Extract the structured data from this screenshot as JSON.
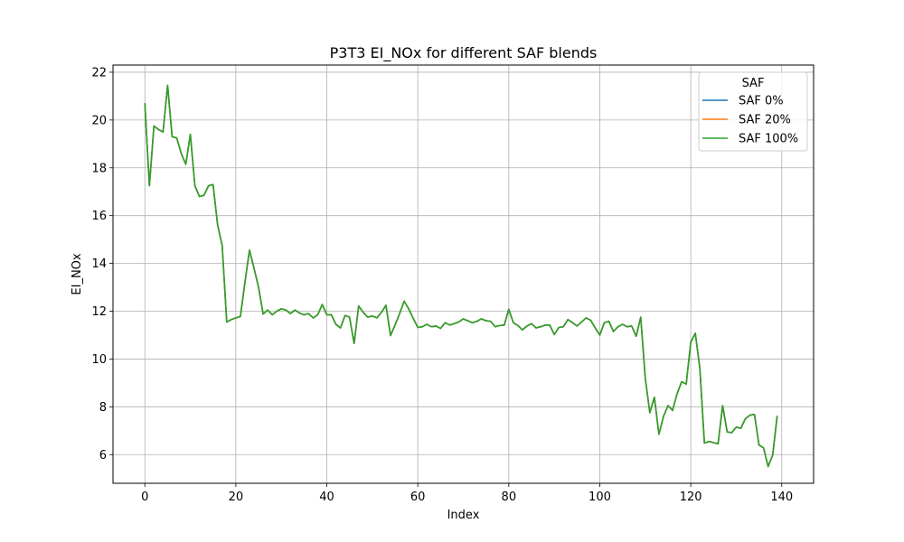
{
  "chart_data": {
    "type": "line",
    "title": "P3T3 EI_NOx for different SAF blends",
    "xlabel": "Index",
    "ylabel": "EI_NOx",
    "xlim": [
      -7,
      147
    ],
    "ylim": [
      4.8,
      22.3
    ],
    "xticks": [
      0,
      20,
      40,
      60,
      80,
      100,
      120,
      140
    ],
    "yticks": [
      6,
      8,
      10,
      12,
      14,
      16,
      18,
      20,
      22
    ],
    "grid": true,
    "legend": {
      "title": "SAF",
      "placement": "upper-right"
    },
    "series": [
      {
        "name": "SAF 0%",
        "color": "#1f77b4"
      },
      {
        "name": "SAF 20%",
        "color": "#ff7f0e"
      },
      {
        "name": "SAF 100%",
        "color": "#2ca02c"
      }
    ],
    "y": [
      20.7,
      17.25,
      19.75,
      19.6,
      19.5,
      21.45,
      19.3,
      19.25,
      18.6,
      18.15,
      19.4,
      17.25,
      16.8,
      16.85,
      17.25,
      17.3,
      15.6,
      14.75,
      11.55,
      11.65,
      11.72,
      11.78,
      13.2,
      14.55,
      13.8,
      13.0,
      11.88,
      12.05,
      11.85,
      12.0,
      12.1,
      12.05,
      11.9,
      12.05,
      11.92,
      11.85,
      11.9,
      11.72,
      11.85,
      12.28,
      11.85,
      11.85,
      11.45,
      11.3,
      11.82,
      11.75,
      10.65,
      12.22,
      11.95,
      11.75,
      11.8,
      11.72,
      11.95,
      12.25,
      10.98,
      11.42,
      11.9,
      12.42,
      12.1,
      11.7,
      11.32,
      11.35,
      11.45,
      11.35,
      11.38,
      11.28,
      11.52,
      11.42,
      11.48,
      11.55,
      11.68,
      11.6,
      11.52,
      11.58,
      11.68,
      11.6,
      11.58,
      11.35,
      11.4,
      11.42,
      12.08,
      11.52,
      11.4,
      11.22,
      11.38,
      11.48,
      11.3,
      11.35,
      11.42,
      11.42,
      11.02,
      11.32,
      11.35,
      11.65,
      11.52,
      11.38,
      11.55,
      11.72,
      11.62,
      11.3,
      11.0,
      11.52,
      11.58,
      11.15,
      11.35,
      11.45,
      11.35,
      11.38,
      10.95,
      11.75,
      9.2,
      7.75,
      8.4,
      6.85,
      7.6,
      8.05,
      7.85,
      8.55,
      9.05,
      8.95,
      10.7,
      11.08,
      9.6,
      6.48,
      6.55,
      6.5,
      6.45,
      8.05,
      6.95,
      6.92,
      7.15,
      7.1,
      7.5,
      7.65,
      7.68,
      6.4,
      6.28,
      5.5,
      5.98,
      7.62
    ]
  }
}
